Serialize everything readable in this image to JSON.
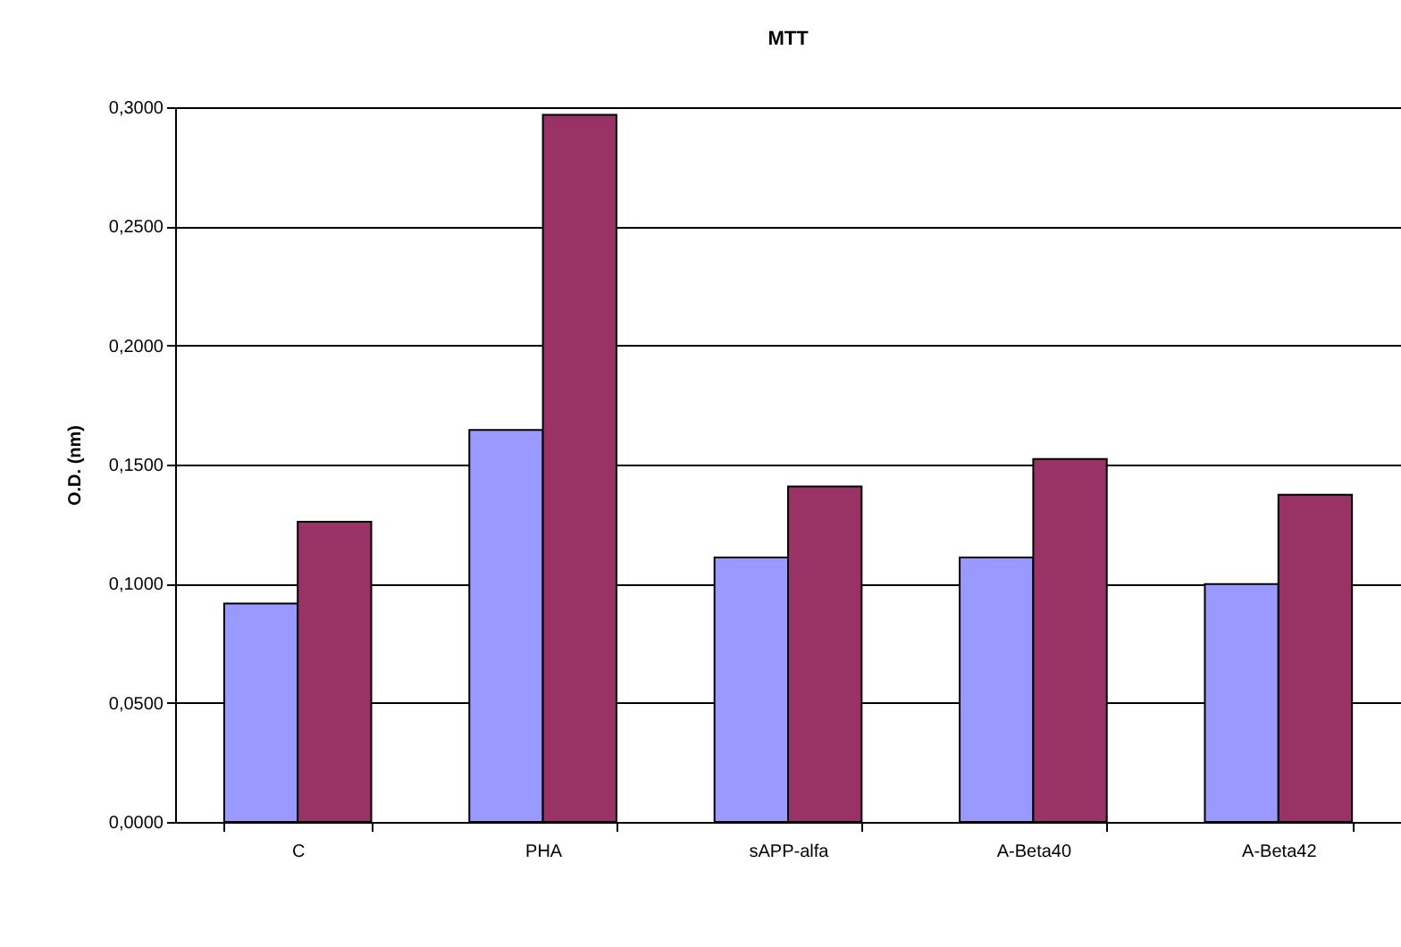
{
  "chart_data": {
    "type": "bar",
    "title": "MTT",
    "ylabel": "O.D. (nm)",
    "categories": [
      "C",
      "PHA",
      "sAPP-alfa",
      "A-Beta40",
      "A-Beta42"
    ],
    "series": [
      {
        "color": "#9999ff",
        "values": [
          0.0917,
          0.1645,
          0.111,
          0.111,
          0.0998
        ]
      },
      {
        "color": "#993366",
        "values": [
          0.126,
          0.2968,
          0.1408,
          0.1523,
          0.1373
        ]
      }
    ],
    "ylim": [
      0,
      0.3
    ],
    "yticks": [
      {
        "value": 0,
        "label": "0,0000"
      },
      {
        "value": 0.05,
        "label": "0,0500"
      },
      {
        "value": 0.1,
        "label": "0,1000"
      },
      {
        "value": 0.15,
        "label": "0,1500"
      },
      {
        "value": 0.2,
        "label": "0,2000"
      },
      {
        "value": 0.25,
        "label": "0,2500"
      },
      {
        "value": 0.3,
        "label": "0,3000"
      }
    ],
    "grid": "y",
    "legend": false
  }
}
